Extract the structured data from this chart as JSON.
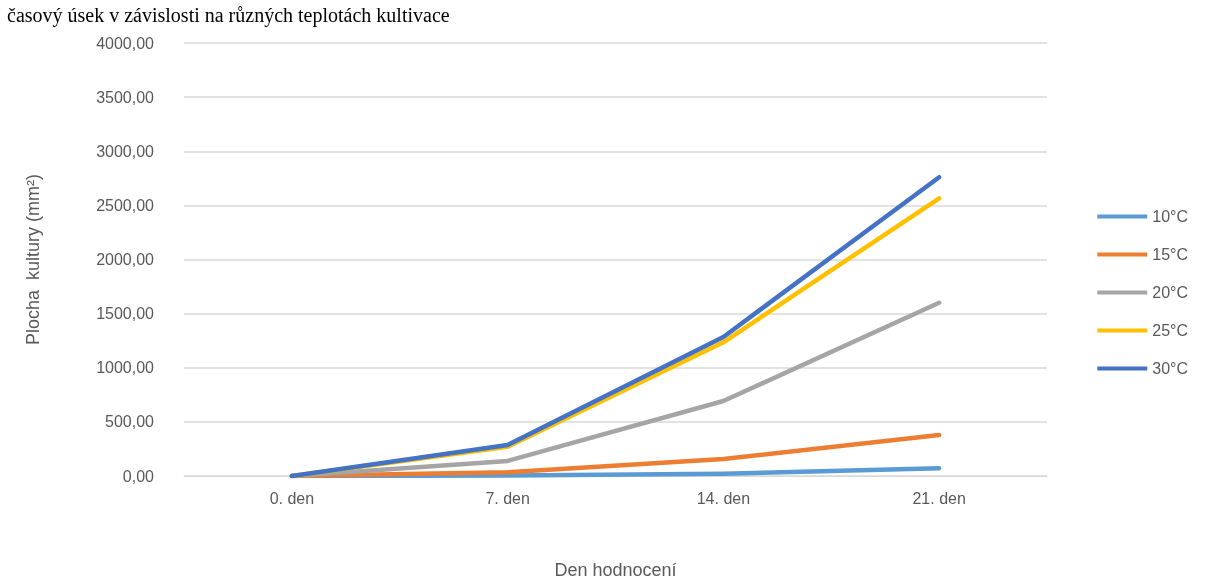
{
  "chart_data": {
    "type": "line",
    "title": "časový úsek v závislosti na různých teplotách kultivace",
    "xlabel": "Den hodnocení",
    "ylabel": "Plocha  kultury (mm²)",
    "categories": [
      "0. den",
      "7. den",
      "14. den",
      "21. den"
    ],
    "series": [
      {
        "name": "10°C",
        "color": "#5b9bd5",
        "values": [
          0,
          5,
          20,
          72
        ]
      },
      {
        "name": "15°C",
        "color": "#ed7d31",
        "values": [
          0,
          35,
          157,
          379
        ]
      },
      {
        "name": "20°C",
        "color": "#a5a5a5",
        "values": [
          0,
          139,
          693,
          1600
        ]
      },
      {
        "name": "25°C",
        "color": "#ffc000",
        "values": [
          0,
          270,
          1235,
          2565
        ]
      },
      {
        "name": "30°C",
        "color": "#4472c4",
        "values": [
          0,
          286,
          1284,
          2760
        ]
      }
    ],
    "ylim": [
      0,
      4000
    ],
    "yticks": [
      {
        "value": 0,
        "label": "0,00"
      },
      {
        "value": 500,
        "label": "500,00"
      },
      {
        "value": 1000,
        "label": "1000,00"
      },
      {
        "value": 1500,
        "label": "1500,00"
      },
      {
        "value": 2000,
        "label": "2000,00"
      },
      {
        "value": 2500,
        "label": "2500,00"
      },
      {
        "value": 3000,
        "label": "3000,00"
      },
      {
        "value": 3500,
        "label": "3500,00"
      },
      {
        "value": 4000,
        "label": "4000,00"
      }
    ],
    "grid": "y",
    "legend": "right",
    "marker": "none",
    "line_style": "solid"
  }
}
